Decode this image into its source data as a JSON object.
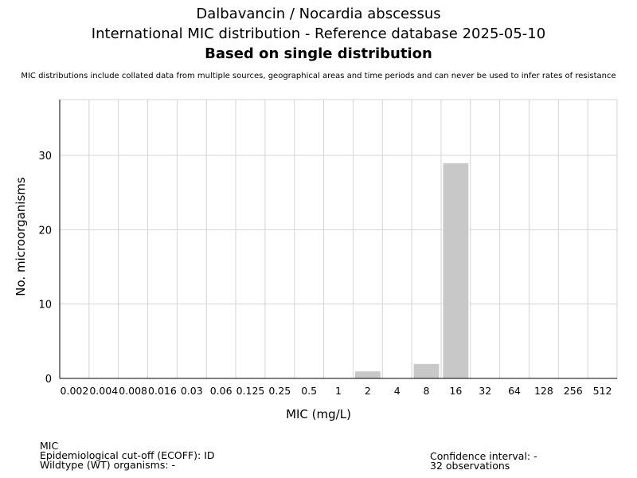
{
  "header": {
    "title_line1": "Dalbavancin / Nocardia abscessus",
    "title_line2": "International MIC distribution - Reference database 2025-05-10",
    "title_line3": "Based on single distribution",
    "note": "MIC distributions include collated data from multiple sources, geographical areas and time periods and can never be used to infer rates of resistance"
  },
  "chart_data": {
    "type": "bar",
    "categories": [
      "0.002",
      "0.004",
      "0.008",
      "0.016",
      "0.03",
      "0.06",
      "0.125",
      "0.25",
      "0.5",
      "1",
      "2",
      "4",
      "8",
      "16",
      "32",
      "64",
      "128",
      "256",
      "512"
    ],
    "values": [
      0,
      0,
      0,
      0,
      0,
      0,
      0,
      0,
      0,
      0,
      1,
      0,
      2,
      29,
      0,
      0,
      0,
      0,
      0
    ],
    "xlabel": "MIC (mg/L)",
    "ylabel": "No. microorganisms",
    "ylim": [
      0,
      37.5
    ],
    "yticks": [
      0,
      10,
      20,
      30
    ],
    "grid": true,
    "bar_color": "#c8c8c8"
  },
  "footer": {
    "left_line1": "MIC",
    "left_line2": "Epidemiological cut-off (ECOFF): ID",
    "left_line3": "Wildtype (WT) organisms:  -",
    "right_line1": "Confidence interval: -",
    "right_line2": "32 observations"
  }
}
